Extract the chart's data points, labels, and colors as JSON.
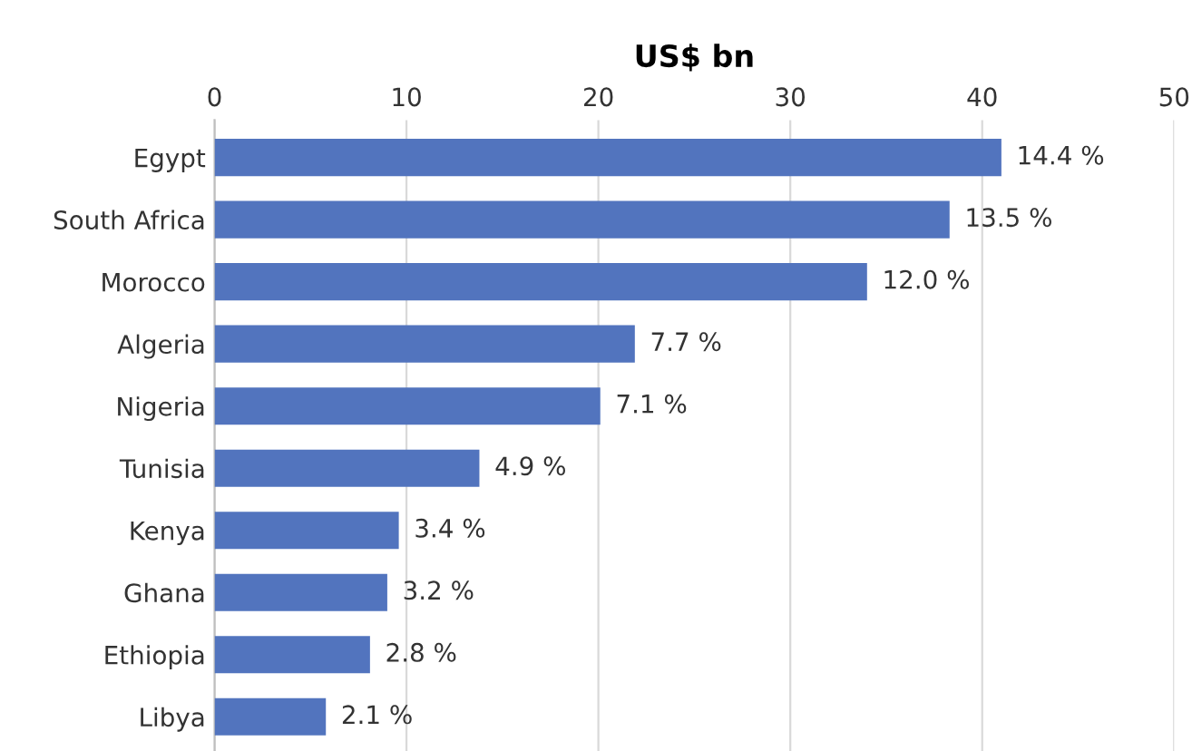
{
  "chart_data": {
    "type": "bar",
    "orientation": "horizontal",
    "xlabel": "US$ bn",
    "categories": [
      "Egypt",
      "South Africa",
      "Morocco",
      "Algeria",
      "Nigeria",
      "Tunisia",
      "Kenya",
      "Ghana",
      "Ethiopia",
      "Libya"
    ],
    "values": [
      41.0,
      38.3,
      34.0,
      21.9,
      20.1,
      13.8,
      9.6,
      9.0,
      8.1,
      5.8
    ],
    "annotations": [
      {
        "text": "14.4 %",
        "x": 41.0,
        "y": "Egypt"
      },
      {
        "text": "13.5 %",
        "x": 38.3,
        "y": "South Africa"
      },
      {
        "text": "12.0 %",
        "x": 34.0,
        "y": "Morocco"
      },
      {
        "text": "7.7 %",
        "x": 21.9,
        "y": "Algeria"
      },
      {
        "text": "7.1 %",
        "x": 20.1,
        "y": "Nigeria"
      },
      {
        "text": "4.9 %",
        "x": 13.8,
        "y": "Tunisia"
      },
      {
        "text": "3.4 %",
        "x": 9.6,
        "y": "Kenya"
      },
      {
        "text": "3.2 %",
        "x": 9.0,
        "y": "Ghana"
      },
      {
        "text": "2.8 %",
        "x": 8.1,
        "y": "Ethiopia"
      },
      {
        "text": "2.1 %",
        "x": 5.8,
        "y": "Libya"
      }
    ],
    "color": "#5274be",
    "xlim": [
      0,
      50
    ],
    "xticks": [
      0,
      10,
      20,
      30,
      40,
      50
    ],
    "grid": "x"
  }
}
